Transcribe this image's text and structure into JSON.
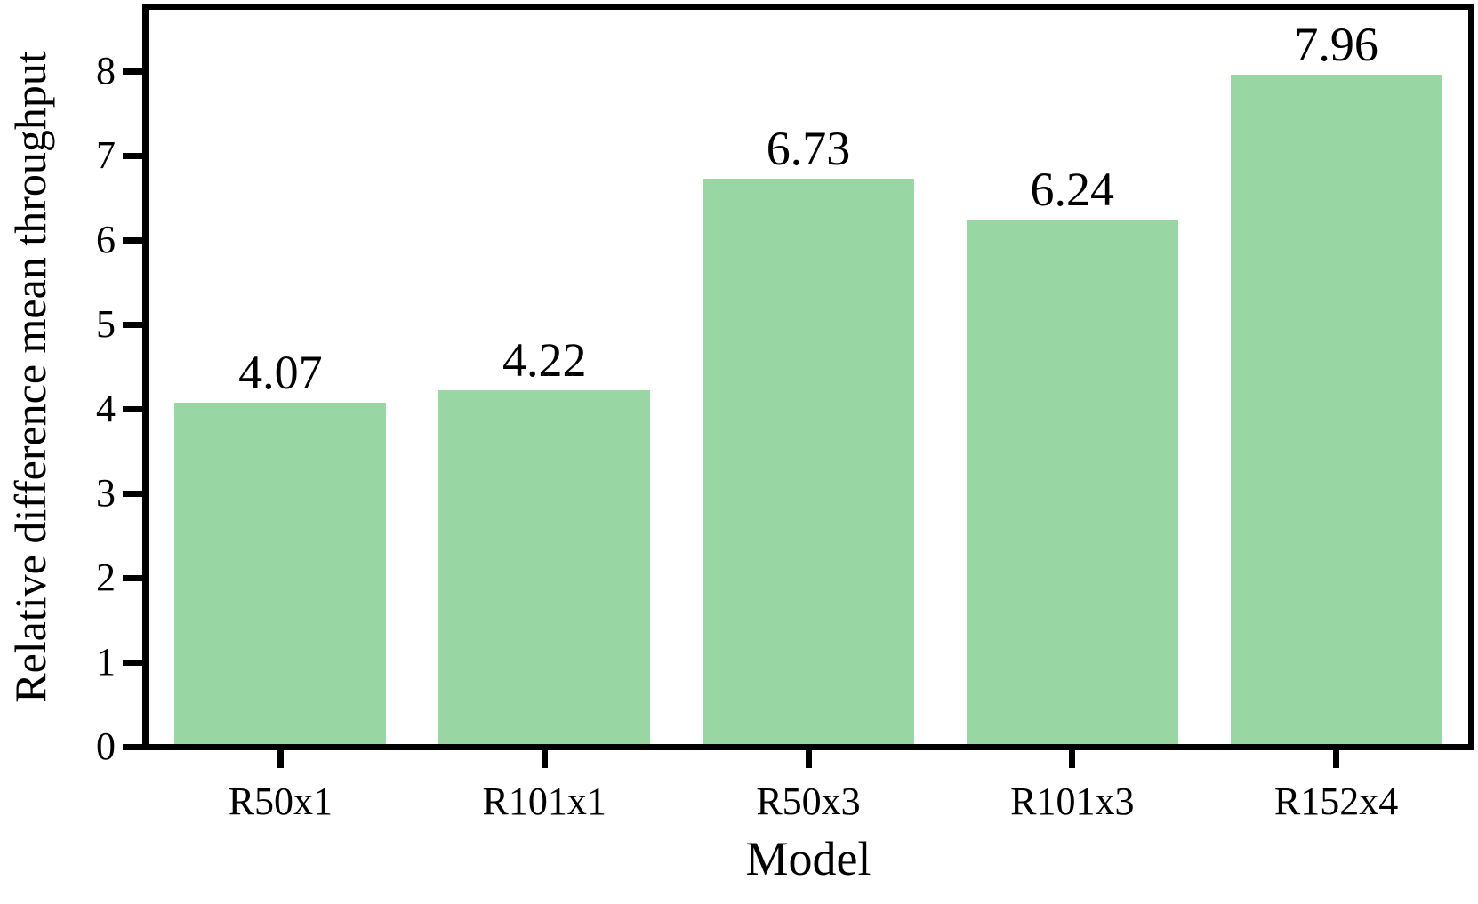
{
  "chart_data": {
    "type": "bar",
    "title": "",
    "categories": [
      "R50x1",
      "R101x1",
      "R50x3",
      "R101x3",
      "R152x4"
    ],
    "values": [
      4.07,
      4.22,
      6.73,
      6.24,
      7.96
    ],
    "value_labels": [
      "4.07",
      "4.22",
      "6.73",
      "6.24",
      "7.96"
    ],
    "xlabel": "Model",
    "ylabel": "Relative difference mean throughput",
    "yticks": [
      0,
      1,
      2,
      3,
      4,
      5,
      6,
      7,
      8
    ],
    "ylim": [
      0,
      8.75
    ],
    "grid": false,
    "legend": null,
    "bar_color": "#98d7a4",
    "axis_color": "#000000",
    "text_color": "#000000",
    "background_color": "#ffffff"
  }
}
